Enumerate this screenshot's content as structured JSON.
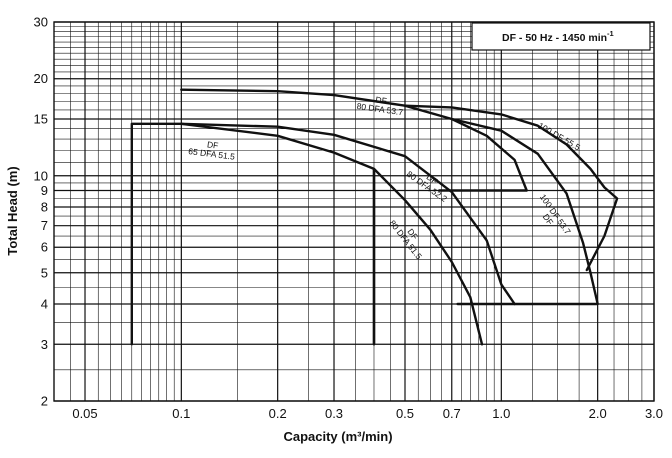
{
  "chart_data": {
    "type": "line",
    "title": "DF - 50 Hz - 1450 min",
    "title_superscript": "-1",
    "xlabel": "Capacity (m³/min)",
    "ylabel": "Total Head (m)",
    "x_scale": "log",
    "y_scale": "log",
    "xlim": [
      0.04,
      3.0
    ],
    "ylim": [
      2,
      30
    ],
    "grid": true,
    "x_ticks": [
      {
        "value": 0.05,
        "label": "0.05"
      },
      {
        "value": 0.1,
        "label": "0.1"
      },
      {
        "value": 0.2,
        "label": "0.2"
      },
      {
        "value": 0.3,
        "label": "0.3"
      },
      {
        "value": 0.5,
        "label": "0.5"
      },
      {
        "value": 0.7,
        "label": "0.7"
      },
      {
        "value": 1.0,
        "label": "1.0"
      },
      {
        "value": 2.0,
        "label": "2.0"
      },
      {
        "value": 3.0,
        "label": "3.0"
      }
    ],
    "y_ticks": [
      {
        "value": 2,
        "label": "2"
      },
      {
        "value": 3,
        "label": "3"
      },
      {
        "value": 4,
        "label": "4"
      },
      {
        "value": 5,
        "label": "5"
      },
      {
        "value": 6,
        "label": "6"
      },
      {
        "value": 7,
        "label": "7"
      },
      {
        "value": 8,
        "label": "8"
      },
      {
        "value": 9,
        "label": "9"
      },
      {
        "value": 10,
        "label": "10"
      },
      {
        "value": 15,
        "label": "15"
      },
      {
        "value": 20,
        "label": "20"
      },
      {
        "value": 30,
        "label": "30"
      }
    ],
    "regions": [
      {
        "label_lines": [
          "DF",
          "65 DFA 51.5"
        ],
        "label_at": [
          0.125,
          12.2
        ],
        "label_angle": 7,
        "points": [
          [
            0.07,
            3.0
          ],
          [
            0.07,
            14.5
          ],
          [
            0.1,
            14.5
          ],
          [
            0.2,
            13.3
          ],
          [
            0.3,
            11.8
          ],
          [
            0.4,
            10.5
          ],
          [
            0.4,
            3.0
          ]
        ]
      },
      {
        "label_lines": [
          "DF",
          "80 DFA 51.5"
        ],
        "label_at": [
          0.52,
          6.5
        ],
        "label_angle": 52,
        "points": [
          [
            0.4,
            3.0
          ],
          [
            0.4,
            10.5
          ],
          [
            0.5,
            8.4
          ],
          [
            0.6,
            6.8
          ],
          [
            0.7,
            5.4
          ],
          [
            0.8,
            4.2
          ],
          [
            0.87,
            3.0
          ]
        ]
      },
      {
        "label_lines": [
          "DF",
          "80 DFA 52.2"
        ],
        "label_at": [
          0.6,
          9.6
        ],
        "label_angle": 35,
        "points": [
          [
            0.1,
            14.5
          ],
          [
            0.2,
            14.2
          ],
          [
            0.3,
            13.4
          ],
          [
            0.5,
            11.5
          ],
          [
            0.7,
            8.9
          ],
          [
            0.9,
            6.3
          ],
          [
            1.0,
            4.6
          ],
          [
            1.1,
            4.0
          ]
        ]
      },
      {
        "label_lines": [
          "DF",
          "80 DFA 53.7"
        ],
        "label_at": [
          0.42,
          16.8
        ],
        "label_angle": 8,
        "points": [
          [
            0.1,
            18.5
          ],
          [
            0.2,
            18.3
          ],
          [
            0.3,
            17.8
          ],
          [
            0.5,
            16.5
          ],
          [
            0.7,
            15.0
          ],
          [
            0.9,
            13.3
          ],
          [
            1.1,
            11.2
          ],
          [
            1.2,
            9.0
          ],
          [
            0.64,
            9.0
          ]
        ]
      },
      {
        "label_lines": [
          "100 DF 55.5"
        ],
        "label_at": [
          1.5,
          13.0
        ],
        "label_angle": 30,
        "points": [
          [
            0.5,
            16.5
          ],
          [
            0.7,
            16.3
          ],
          [
            1.0,
            15.5
          ],
          [
            1.3,
            14.3
          ],
          [
            1.6,
            12.5
          ],
          [
            1.9,
            10.5
          ],
          [
            2.1,
            9.2
          ],
          [
            2.3,
            8.5
          ],
          [
            2.1,
            6.5
          ],
          [
            1.85,
            5.1
          ]
        ]
      },
      {
        "label_lines": [
          "100 DF 53.7",
          "DF"
        ],
        "label_at": [
          1.45,
          7.5
        ],
        "label_angle": 55,
        "points": [
          [
            0.7,
            15.0
          ],
          [
            1.0,
            13.8
          ],
          [
            1.3,
            11.7
          ],
          [
            1.6,
            8.8
          ],
          [
            1.8,
            6.2
          ],
          [
            1.9,
            5.0
          ],
          [
            2.0,
            4.0
          ],
          [
            0.73,
            4.0
          ]
        ]
      }
    ]
  }
}
